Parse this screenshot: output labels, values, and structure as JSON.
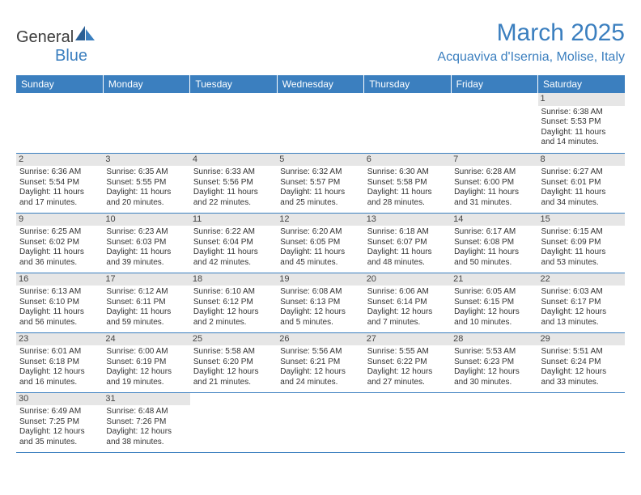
{
  "logo": {
    "general": "General",
    "blue": "Blue"
  },
  "header": {
    "month_title": "March 2025",
    "location": "Acquaviva d'Isernia, Molise, Italy"
  },
  "colors": {
    "brand_blue": "#3b7fbf",
    "header_text": "#ffffff",
    "daynum_bg": "#e6e6e6",
    "text": "#333333",
    "logo_gray": "#3b3b3b"
  },
  "weekdays": [
    "Sunday",
    "Monday",
    "Tuesday",
    "Wednesday",
    "Thursday",
    "Friday",
    "Saturday"
  ],
  "weeks": [
    [
      null,
      null,
      null,
      null,
      null,
      null,
      {
        "day": "1",
        "sunrise": "Sunrise: 6:38 AM",
        "sunset": "Sunset: 5:53 PM",
        "d1": "Daylight: 11 hours",
        "d2": "and 14 minutes."
      }
    ],
    [
      {
        "day": "2",
        "sunrise": "Sunrise: 6:36 AM",
        "sunset": "Sunset: 5:54 PM",
        "d1": "Daylight: 11 hours",
        "d2": "and 17 minutes."
      },
      {
        "day": "3",
        "sunrise": "Sunrise: 6:35 AM",
        "sunset": "Sunset: 5:55 PM",
        "d1": "Daylight: 11 hours",
        "d2": "and 20 minutes."
      },
      {
        "day": "4",
        "sunrise": "Sunrise: 6:33 AM",
        "sunset": "Sunset: 5:56 PM",
        "d1": "Daylight: 11 hours",
        "d2": "and 22 minutes."
      },
      {
        "day": "5",
        "sunrise": "Sunrise: 6:32 AM",
        "sunset": "Sunset: 5:57 PM",
        "d1": "Daylight: 11 hours",
        "d2": "and 25 minutes."
      },
      {
        "day": "6",
        "sunrise": "Sunrise: 6:30 AM",
        "sunset": "Sunset: 5:58 PM",
        "d1": "Daylight: 11 hours",
        "d2": "and 28 minutes."
      },
      {
        "day": "7",
        "sunrise": "Sunrise: 6:28 AM",
        "sunset": "Sunset: 6:00 PM",
        "d1": "Daylight: 11 hours",
        "d2": "and 31 minutes."
      },
      {
        "day": "8",
        "sunrise": "Sunrise: 6:27 AM",
        "sunset": "Sunset: 6:01 PM",
        "d1": "Daylight: 11 hours",
        "d2": "and 34 minutes."
      }
    ],
    [
      {
        "day": "9",
        "sunrise": "Sunrise: 6:25 AM",
        "sunset": "Sunset: 6:02 PM",
        "d1": "Daylight: 11 hours",
        "d2": "and 36 minutes."
      },
      {
        "day": "10",
        "sunrise": "Sunrise: 6:23 AM",
        "sunset": "Sunset: 6:03 PM",
        "d1": "Daylight: 11 hours",
        "d2": "and 39 minutes."
      },
      {
        "day": "11",
        "sunrise": "Sunrise: 6:22 AM",
        "sunset": "Sunset: 6:04 PM",
        "d1": "Daylight: 11 hours",
        "d2": "and 42 minutes."
      },
      {
        "day": "12",
        "sunrise": "Sunrise: 6:20 AM",
        "sunset": "Sunset: 6:05 PM",
        "d1": "Daylight: 11 hours",
        "d2": "and 45 minutes."
      },
      {
        "day": "13",
        "sunrise": "Sunrise: 6:18 AM",
        "sunset": "Sunset: 6:07 PM",
        "d1": "Daylight: 11 hours",
        "d2": "and 48 minutes."
      },
      {
        "day": "14",
        "sunrise": "Sunrise: 6:17 AM",
        "sunset": "Sunset: 6:08 PM",
        "d1": "Daylight: 11 hours",
        "d2": "and 50 minutes."
      },
      {
        "day": "15",
        "sunrise": "Sunrise: 6:15 AM",
        "sunset": "Sunset: 6:09 PM",
        "d1": "Daylight: 11 hours",
        "d2": "and 53 minutes."
      }
    ],
    [
      {
        "day": "16",
        "sunrise": "Sunrise: 6:13 AM",
        "sunset": "Sunset: 6:10 PM",
        "d1": "Daylight: 11 hours",
        "d2": "and 56 minutes."
      },
      {
        "day": "17",
        "sunrise": "Sunrise: 6:12 AM",
        "sunset": "Sunset: 6:11 PM",
        "d1": "Daylight: 11 hours",
        "d2": "and 59 minutes."
      },
      {
        "day": "18",
        "sunrise": "Sunrise: 6:10 AM",
        "sunset": "Sunset: 6:12 PM",
        "d1": "Daylight: 12 hours",
        "d2": "and 2 minutes."
      },
      {
        "day": "19",
        "sunrise": "Sunrise: 6:08 AM",
        "sunset": "Sunset: 6:13 PM",
        "d1": "Daylight: 12 hours",
        "d2": "and 5 minutes."
      },
      {
        "day": "20",
        "sunrise": "Sunrise: 6:06 AM",
        "sunset": "Sunset: 6:14 PM",
        "d1": "Daylight: 12 hours",
        "d2": "and 7 minutes."
      },
      {
        "day": "21",
        "sunrise": "Sunrise: 6:05 AM",
        "sunset": "Sunset: 6:15 PM",
        "d1": "Daylight: 12 hours",
        "d2": "and 10 minutes."
      },
      {
        "day": "22",
        "sunrise": "Sunrise: 6:03 AM",
        "sunset": "Sunset: 6:17 PM",
        "d1": "Daylight: 12 hours",
        "d2": "and 13 minutes."
      }
    ],
    [
      {
        "day": "23",
        "sunrise": "Sunrise: 6:01 AM",
        "sunset": "Sunset: 6:18 PM",
        "d1": "Daylight: 12 hours",
        "d2": "and 16 minutes."
      },
      {
        "day": "24",
        "sunrise": "Sunrise: 6:00 AM",
        "sunset": "Sunset: 6:19 PM",
        "d1": "Daylight: 12 hours",
        "d2": "and 19 minutes."
      },
      {
        "day": "25",
        "sunrise": "Sunrise: 5:58 AM",
        "sunset": "Sunset: 6:20 PM",
        "d1": "Daylight: 12 hours",
        "d2": "and 21 minutes."
      },
      {
        "day": "26",
        "sunrise": "Sunrise: 5:56 AM",
        "sunset": "Sunset: 6:21 PM",
        "d1": "Daylight: 12 hours",
        "d2": "and 24 minutes."
      },
      {
        "day": "27",
        "sunrise": "Sunrise: 5:55 AM",
        "sunset": "Sunset: 6:22 PM",
        "d1": "Daylight: 12 hours",
        "d2": "and 27 minutes."
      },
      {
        "day": "28",
        "sunrise": "Sunrise: 5:53 AM",
        "sunset": "Sunset: 6:23 PM",
        "d1": "Daylight: 12 hours",
        "d2": "and 30 minutes."
      },
      {
        "day": "29",
        "sunrise": "Sunrise: 5:51 AM",
        "sunset": "Sunset: 6:24 PM",
        "d1": "Daylight: 12 hours",
        "d2": "and 33 minutes."
      }
    ],
    [
      {
        "day": "30",
        "sunrise": "Sunrise: 6:49 AM",
        "sunset": "Sunset: 7:25 PM",
        "d1": "Daylight: 12 hours",
        "d2": "and 35 minutes."
      },
      {
        "day": "31",
        "sunrise": "Sunrise: 6:48 AM",
        "sunset": "Sunset: 7:26 PM",
        "d1": "Daylight: 12 hours",
        "d2": "and 38 minutes."
      },
      null,
      null,
      null,
      null,
      null
    ]
  ]
}
